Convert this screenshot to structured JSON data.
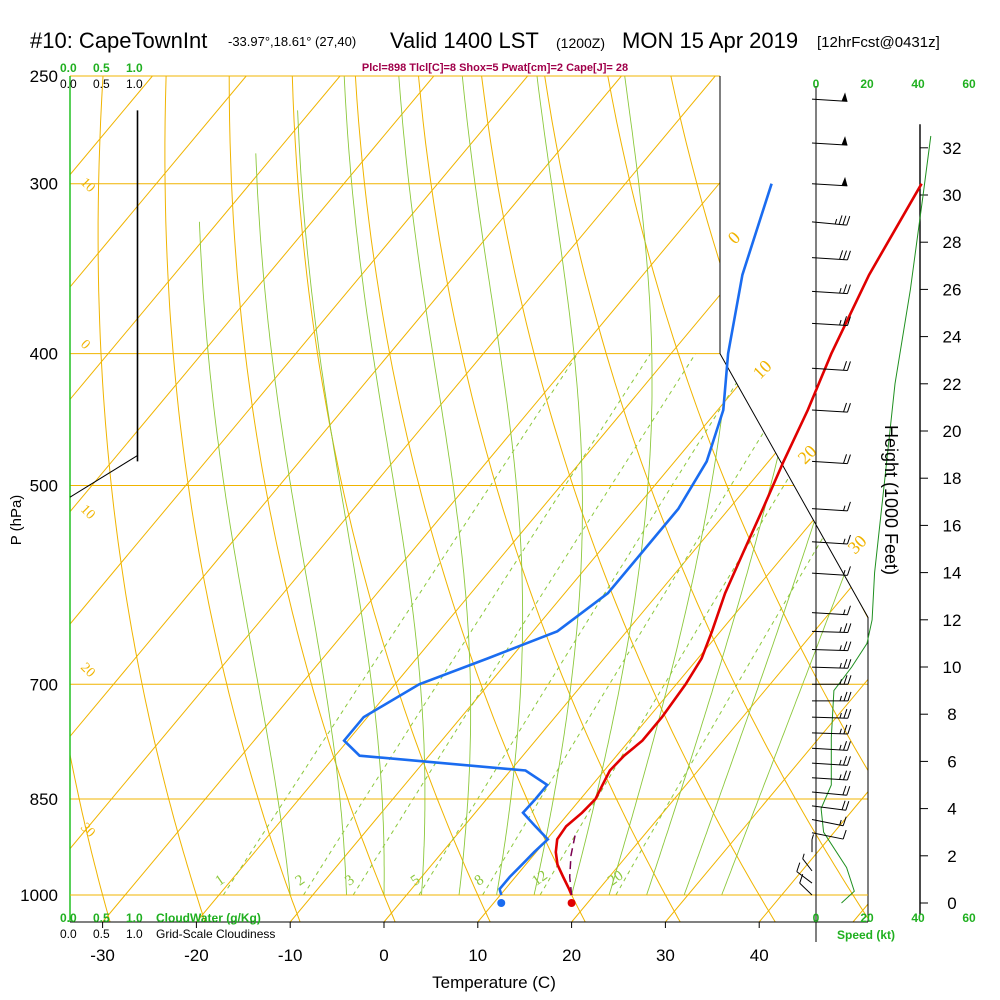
{
  "header": {
    "title": "#10: CapeTownInt",
    "coords": "-33.97°,18.61° (27,40)",
    "valid": "Valid 1400 LST",
    "zulu": "(1200Z)",
    "date": "MON 15 Apr 2019",
    "forecast": "[12hrFcst@0431z]"
  },
  "subtitle": "Plcl=898 Tlcl[C]=8 Shox=5 Pwat[cm]=2 Cape[J]= 28",
  "colors": {
    "isobar": "#f0b400",
    "isotherm": "#f0b400",
    "dry_adiabat": "#f0b400",
    "moist_adiabat": "#8cc83c",
    "mixing_ratio": "#8cc83c",
    "temperature": "#e00000",
    "dewpoint": "#1a6cf0",
    "parcel": "#7a0050",
    "green_label": "#20b020",
    "subtitle": "#a0004a"
  },
  "chart_data": {
    "type": "line",
    "title": "#10: CapeTownInt",
    "xlabel": "Temperature (C)",
    "ylabel": "P (hPa)",
    "right_axis_label": "Height (1000 Feet)",
    "x_ticks": [
      "-30",
      "-20",
      "-10",
      "0",
      "10",
      "20",
      "30",
      "40"
    ],
    "x_tick_values": [
      -30,
      -20,
      -10,
      0,
      10,
      20,
      30,
      40
    ],
    "p_ticks": [
      "250",
      "300",
      "400",
      "500",
      "700",
      "850",
      "1000"
    ],
    "p_tick_values": [
      250,
      300,
      400,
      500,
      700,
      850,
      1000
    ],
    "height_ticks": [
      "0",
      "2",
      "4",
      "6",
      "8",
      "10",
      "12",
      "14",
      "16",
      "18",
      "20",
      "22",
      "24",
      "26",
      "28",
      "30",
      "32"
    ],
    "height_tick_values": [
      0,
      2,
      4,
      6,
      8,
      10,
      12,
      14,
      16,
      18,
      20,
      22,
      24,
      26,
      28,
      30,
      32
    ],
    "isotherm_labels": [
      "10",
      "0",
      "10",
      "20",
      "30",
      "0",
      "10",
      "20",
      "30"
    ],
    "mixing_ratio_labels": [
      "1",
      "2",
      "3",
      "5",
      "8",
      "12",
      "20"
    ],
    "mixing_ratio_values": [
      1,
      2,
      3,
      5,
      8,
      12,
      20
    ],
    "series": [
      {
        "name": "Temperature",
        "x": [
          20.0,
          19.2,
          17.5,
          15.8,
          14.5,
          13.5,
          13.3,
          13.8,
          14.0,
          13.5,
          13.0,
          13.2,
          13.8,
          13.8,
          13.4,
          12.8,
          11.5,
          9.5,
          7.8,
          6.0,
          4.0,
          2.0,
          -0.5,
          -3.5,
          -6.0
        ],
        "y": [
          1000,
          990,
          970,
          950,
          930,
          910,
          890,
          870,
          850,
          830,
          810,
          790,
          770,
          740,
          700,
          670,
          640,
          600,
          560,
          520,
          480,
          440,
          400,
          350,
          300
        ]
      },
      {
        "name": "Dewpoint",
        "x": [
          12.5,
          11.8,
          11.8,
          12.0,
          12.2,
          12.5,
          10.0,
          7.5,
          7.6,
          7.6,
          4.0,
          -15.0,
          -18.0,
          -18.0,
          -15.0,
          -10.0,
          -5.0,
          -3.0,
          -3.0,
          -3.0,
          -4.2,
          -7.0,
          -11.5,
          -17.0,
          -22.0
        ],
        "y": [
          1000,
          990,
          970,
          950,
          930,
          910,
          890,
          870,
          850,
          830,
          810,
          790,
          770,
          740,
          700,
          670,
          640,
          600,
          560,
          520,
          480,
          440,
          400,
          350,
          300
        ]
      },
      {
        "name": "Parcel",
        "x": [
          20.0,
          18.2,
          16.4,
          14.8
        ],
        "y": [
          1000,
          970,
          935,
          898
        ]
      }
    ],
    "cloud_water_label": "CloudWater (g/Kg)",
    "cloudiness_label": "Grid-Scale Cloudiness",
    "scale_ticks": [
      "0.0",
      "0.5",
      "1.0"
    ],
    "cloudiness_profile": [
      {
        "p": 265,
        "value": 0.9
      },
      {
        "p": 480,
        "value": 0.9
      }
    ],
    "wind_speed_label": "Speed (kt)",
    "wind_speed_ticks": [
      "0",
      "20",
      "40",
      "60"
    ],
    "wind_speed_profile": [
      {
        "h": 0,
        "kt": 10
      },
      {
        "h": 0.5,
        "kt": 15
      },
      {
        "h": 1.5,
        "kt": 12
      },
      {
        "h": 3,
        "kt": 3
      },
      {
        "h": 4,
        "kt": 2
      },
      {
        "h": 5,
        "kt": 6
      },
      {
        "h": 7,
        "kt": 6
      },
      {
        "h": 9,
        "kt": 7
      },
      {
        "h": 10,
        "kt": 14
      },
      {
        "h": 11,
        "kt": 20
      },
      {
        "h": 12,
        "kt": 22
      },
      {
        "h": 14,
        "kt": 23
      },
      {
        "h": 18,
        "kt": 27
      },
      {
        "h": 22,
        "kt": 31
      },
      {
        "h": 26,
        "kt": 37
      },
      {
        "h": 30,
        "kt": 42
      },
      {
        "h": 32.5,
        "kt": 45
      }
    ],
    "wind_barbs": [
      {
        "p": 1000,
        "dir": 160,
        "kt": 10
      },
      {
        "p": 980,
        "dir": 155,
        "kt": 12
      },
      {
        "p": 960,
        "dir": 165,
        "kt": 8
      },
      {
        "p": 930,
        "dir": 180,
        "kt": 5
      },
      {
        "p": 900,
        "dir": 300,
        "kt": 10
      },
      {
        "p": 880,
        "dir": 300,
        "kt": 15
      },
      {
        "p": 860,
        "dir": 290,
        "kt": 20
      },
      {
        "p": 840,
        "dir": 285,
        "kt": 20
      },
      {
        "p": 820,
        "dir": 280,
        "kt": 25
      },
      {
        "p": 800,
        "dir": 280,
        "kt": 25
      },
      {
        "p": 780,
        "dir": 280,
        "kt": 25
      },
      {
        "p": 760,
        "dir": 275,
        "kt": 25
      },
      {
        "p": 740,
        "dir": 275,
        "kt": 25
      },
      {
        "p": 720,
        "dir": 270,
        "kt": 25
      },
      {
        "p": 700,
        "dir": 270,
        "kt": 25
      },
      {
        "p": 680,
        "dir": 275,
        "kt": 25
      },
      {
        "p": 660,
        "dir": 275,
        "kt": 25
      },
      {
        "p": 640,
        "dir": 275,
        "kt": 25
      },
      {
        "p": 620,
        "dir": 280,
        "kt": 15
      },
      {
        "p": 580,
        "dir": 280,
        "kt": 15
      },
      {
        "p": 550,
        "dir": 280,
        "kt": 15
      },
      {
        "p": 520,
        "dir": 280,
        "kt": 15
      },
      {
        "p": 480,
        "dir": 280,
        "kt": 20
      },
      {
        "p": 440,
        "dir": 280,
        "kt": 20
      },
      {
        "p": 410,
        "dir": 280,
        "kt": 20
      },
      {
        "p": 380,
        "dir": 280,
        "kt": 25
      },
      {
        "p": 360,
        "dir": 280,
        "kt": 25
      },
      {
        "p": 340,
        "dir": 280,
        "kt": 30
      },
      {
        "p": 320,
        "dir": 285,
        "kt": 35
      },
      {
        "p": 300,
        "dir": 280,
        "kt": 50
      },
      {
        "p": 280,
        "dir": 280,
        "kt": 50
      },
      {
        "p": 260,
        "dir": 280,
        "kt": 50
      }
    ],
    "grid": true
  }
}
